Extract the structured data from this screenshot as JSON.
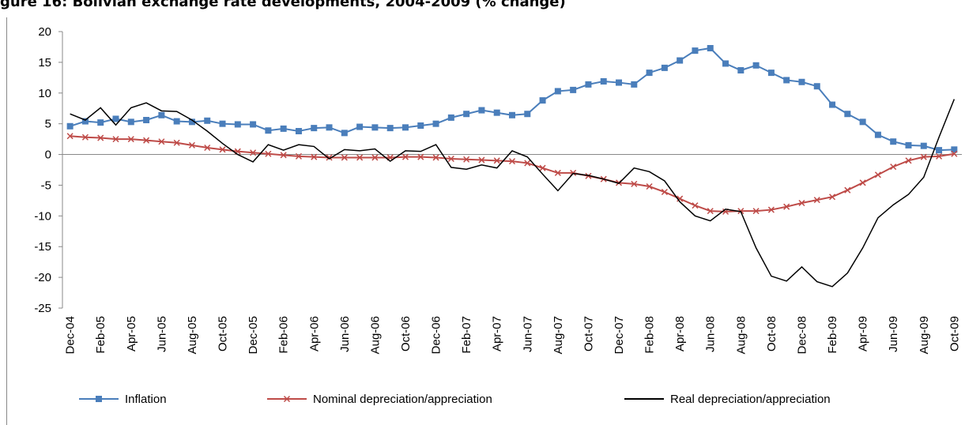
{
  "chart_data": {
    "type": "line",
    "title": "gure 16: Bolivian exchange rate developments, 2004-2009 (% change)",
    "categories": [
      "Dec-04",
      null,
      "Feb-05",
      null,
      "Apr-05",
      null,
      "Jun-05",
      null,
      "Aug-05",
      null,
      "Oct-05",
      null,
      "Dec-05",
      null,
      "Feb-06",
      null,
      "Apr-06",
      null,
      "Jun-06",
      null,
      "Aug-06",
      null,
      "Oct-06",
      null,
      "Dec-06",
      null,
      "Feb-07",
      null,
      "Apr-07",
      null,
      "Jun-07",
      null,
      "Aug-07",
      null,
      "Oct-07",
      null,
      "Dec-07",
      null,
      "Feb-08",
      null,
      "Apr-08",
      null,
      "Jun-08",
      null,
      "Aug-08",
      null,
      "Oct-08",
      null,
      "Dec-08",
      null,
      "Feb-09",
      null,
      "Apr-09",
      null,
      "Jun-09",
      null,
      "Aug-09",
      null,
      "Oct-09"
    ],
    "series": [
      {
        "name": "Inflation",
        "color": "#4a7ebb",
        "marker": "square",
        "values": [
          4.6,
          5.4,
          5.2,
          5.8,
          5.3,
          5.6,
          6.4,
          5.4,
          5.3,
          5.5,
          5.0,
          4.9,
          4.9,
          3.9,
          4.2,
          3.8,
          4.3,
          4.4,
          3.5,
          4.5,
          4.4,
          4.3,
          4.4,
          4.7,
          5.0,
          6.0,
          6.6,
          7.2,
          6.8,
          6.4,
          6.6,
          8.8,
          10.3,
          10.5,
          11.4,
          11.9,
          11.7,
          11.4,
          13.3,
          14.1,
          15.3,
          16.9,
          17.3,
          14.8,
          13.7,
          14.5,
          13.3,
          12.1,
          11.8,
          11.1,
          8.1,
          6.6,
          5.3,
          3.2,
          2.1,
          1.5,
          1.4,
          0.7,
          0.8
        ]
      },
      {
        "name": "Nominal depreciation/appreciation",
        "color": "#be4b48",
        "marker": "x",
        "values": [
          3.0,
          2.8,
          2.7,
          2.5,
          2.5,
          2.3,
          2.1,
          1.9,
          1.5,
          1.1,
          0.8,
          0.5,
          0.3,
          0.1,
          -0.1,
          -0.3,
          -0.4,
          -0.5,
          -0.5,
          -0.5,
          -0.5,
          -0.5,
          -0.4,
          -0.4,
          -0.5,
          -0.7,
          -0.8,
          -0.9,
          -1.0,
          -1.1,
          -1.4,
          -2.2,
          -3.0,
          -3.0,
          -3.5,
          -4.0,
          -4.6,
          -4.8,
          -5.2,
          -6.1,
          -7.2,
          -8.3,
          -9.2,
          -9.3,
          -9.2,
          -9.2,
          -9.0,
          -8.5,
          -7.9,
          -7.4,
          -6.9,
          -5.8,
          -4.6,
          -3.3,
          -2.0,
          -1.0,
          -0.4,
          -0.3,
          0.1
        ]
      },
      {
        "name": "Real depreciation/appreciation",
        "color": "#000000",
        "marker": "none",
        "values": [
          6.6,
          5.6,
          7.6,
          4.8,
          7.6,
          8.4,
          7.1,
          7.0,
          5.6,
          3.8,
          1.8,
          0.0,
          -1.2,
          1.6,
          0.7,
          1.6,
          1.3,
          -0.7,
          0.8,
          0.6,
          0.9,
          -1.1,
          0.6,
          0.5,
          1.6,
          -2.1,
          -2.4,
          -1.7,
          -2.2,
          0.6,
          -0.4,
          -3.2,
          -5.9,
          -3.1,
          -3.4,
          -4.0,
          -4.7,
          -2.2,
          -2.8,
          -4.3,
          -7.7,
          -10.0,
          -10.8,
          -8.9,
          -9.3,
          -15.2,
          -19.8,
          -20.6,
          -18.3,
          -20.7,
          -21.5,
          -19.3,
          -15.2,
          -10.3,
          -8.2,
          -6.5,
          -3.7,
          2.8,
          9.0
        ]
      }
    ],
    "ylim": [
      -25,
      20
    ],
    "yticks": [
      -25,
      -20,
      -15,
      -10,
      -5,
      0,
      5,
      10,
      15,
      20
    ],
    "grid": false,
    "legend": "bottom"
  }
}
